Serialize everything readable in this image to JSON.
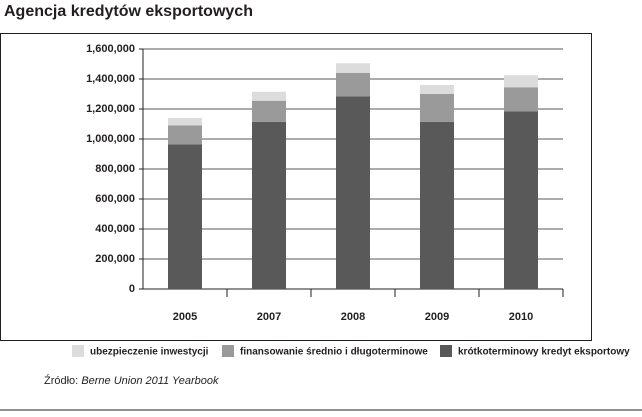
{
  "chart_data": {
    "type": "stacked-bar",
    "title": "Agencja kredytów eksportowych",
    "categories": [
      "2005",
      "2007",
      "2008",
      "2009",
      "2010"
    ],
    "series": [
      {
        "name": "ubezpieczenie inwestycji",
        "color": "#dcdcdc",
        "values": [
          50000,
          60000,
          65000,
          60000,
          80000
        ]
      },
      {
        "name": "finansowanie średnio i długoterminowe",
        "color": "#9a9a9a",
        "values": [
          125000,
          140000,
          155000,
          185000,
          160000
        ]
      },
      {
        "name": "krótkoterminowy kredyt eksportowy",
        "color": "#595959",
        "values": [
          965000,
          1115000,
          1285000,
          1115000,
          1185000
        ]
      }
    ],
    "ylim": [
      0,
      1600000
    ],
    "yticks": [
      0,
      {
        "value": 200000,
        "label": "200,000"
      },
      {
        "value": 400000,
        "label": "400,000"
      },
      {
        "value": 600000,
        "label": "600,000"
      },
      {
        "value": 800000,
        "label": "800,000"
      },
      {
        "value": 1000000,
        "label": "1,000,000"
      },
      {
        "value": 1200000,
        "label": "1,200,000"
      },
      {
        "value": 1400000,
        "label": "1,400,000"
      },
      {
        "value": 1600000,
        "label": "1,600,000"
      }
    ],
    "grid": true,
    "source_label": "Źródło:",
    "source": "Berne Union 2011 Yearbook"
  }
}
